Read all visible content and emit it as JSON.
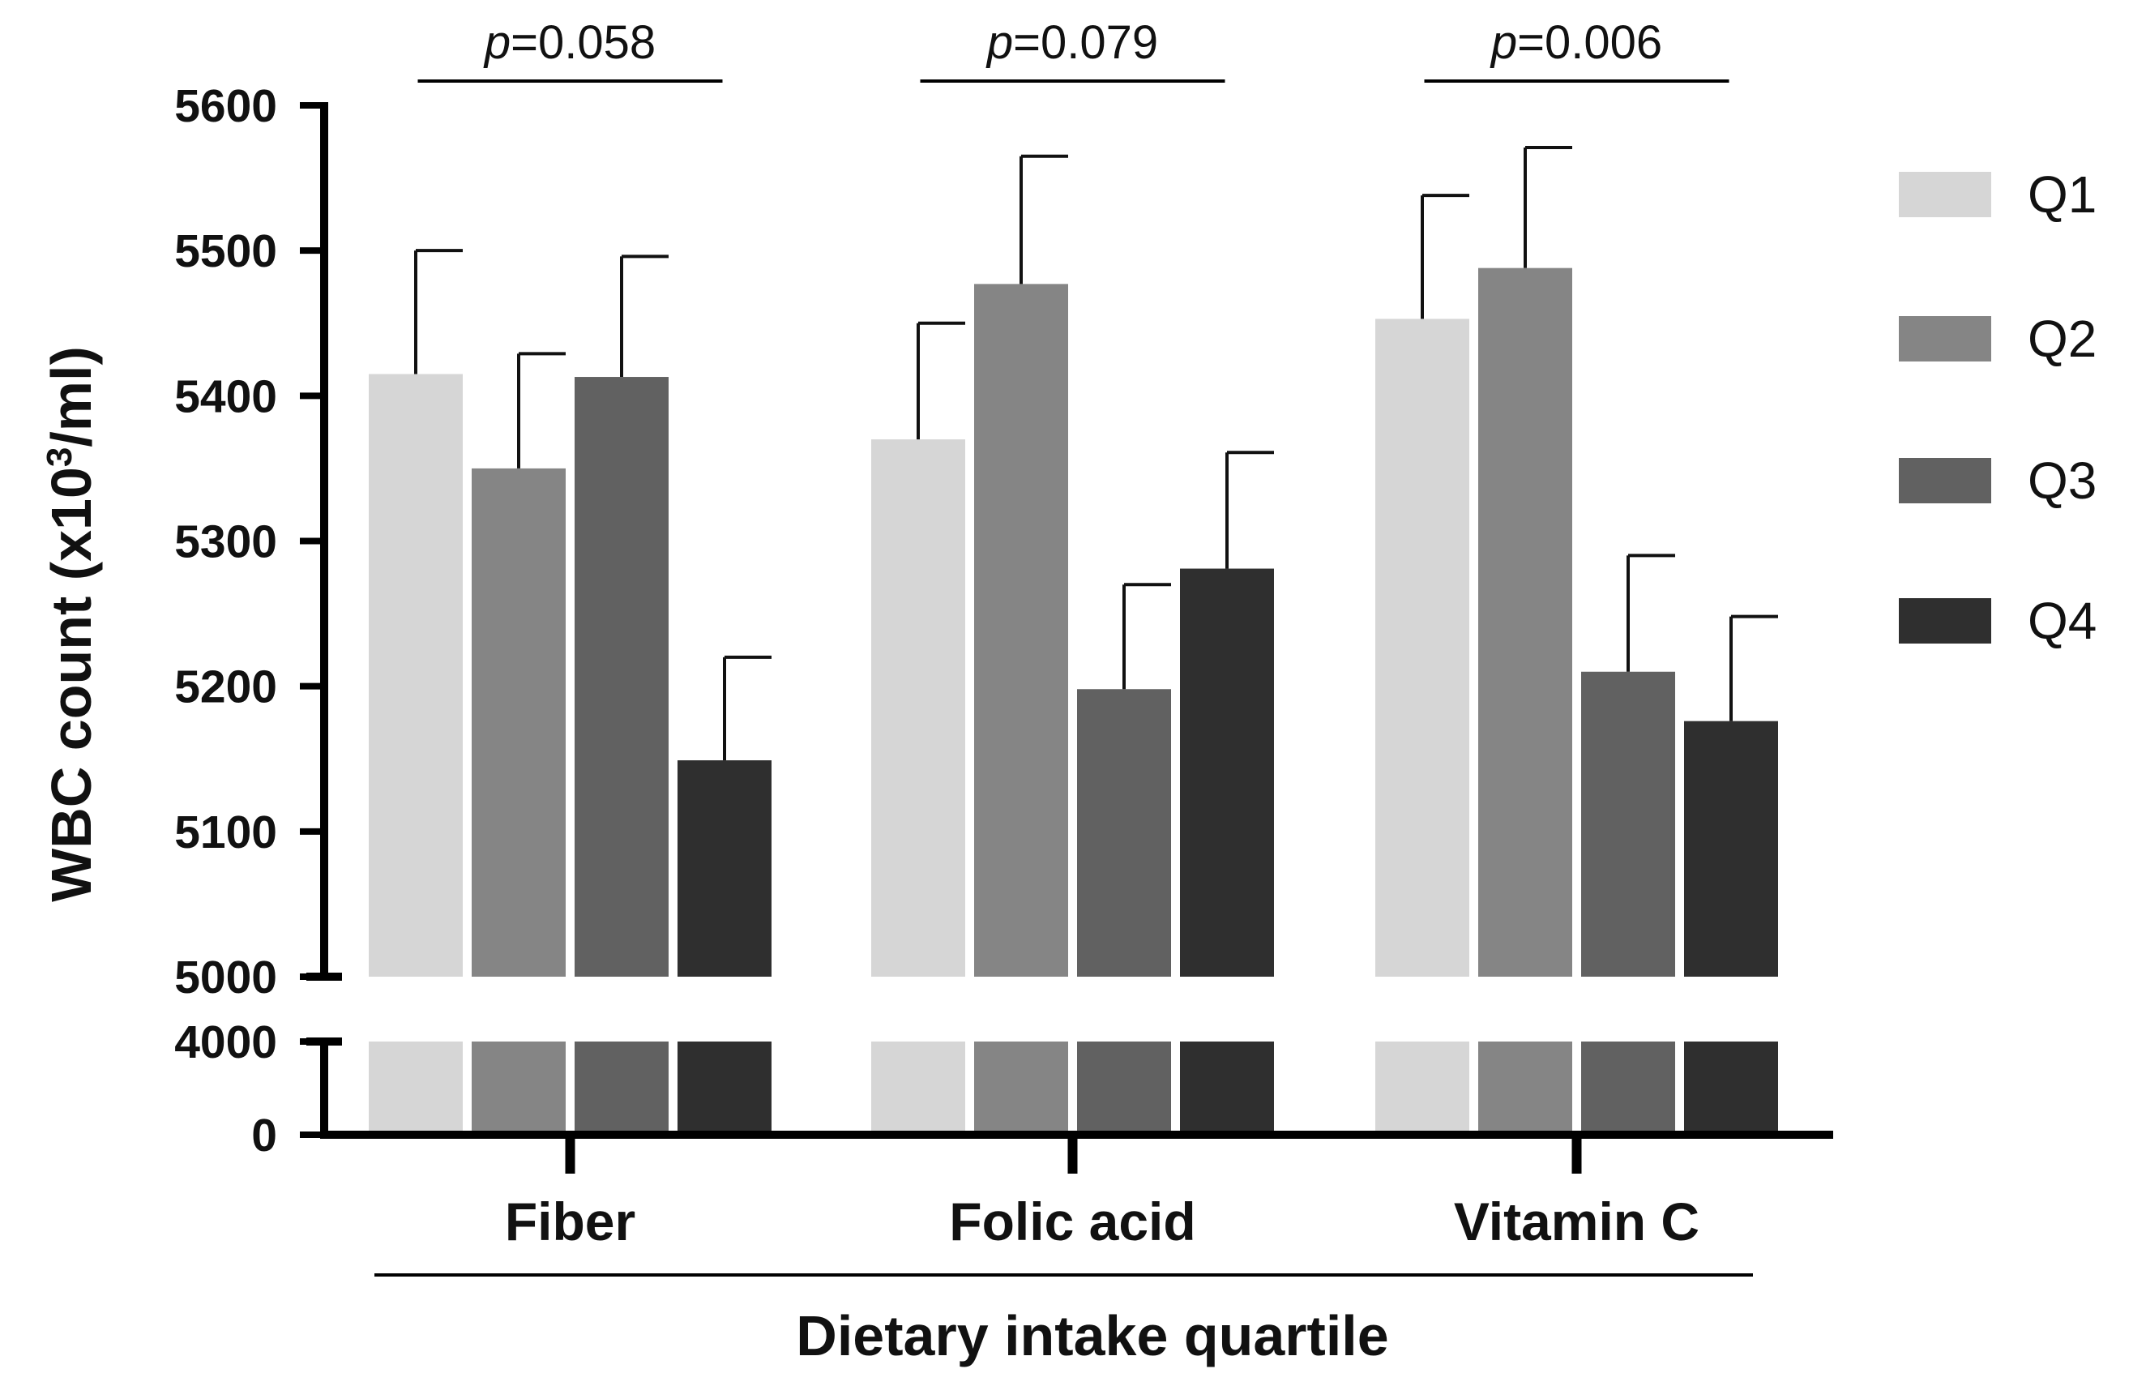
{
  "chart_data": {
    "type": "bar",
    "title": "",
    "xlabel": "Dietary intake quartile",
    "ylabel_main": "WBC count (x10",
    "ylabel_sup": "3",
    "ylabel_tail": "/ml)",
    "categories": [
      "Fiber",
      "Folic acid",
      "Vitamin C"
    ],
    "series": [
      {
        "name": "Q1",
        "color": "#d6d6d6",
        "values": [
          5415,
          5370,
          5453
        ],
        "errors": [
          85,
          80,
          85
        ]
      },
      {
        "name": "Q2",
        "color": "#858585",
        "values": [
          5350,
          5477,
          5488
        ],
        "errors": [
          79,
          88,
          83
        ]
      },
      {
        "name": "Q3",
        "color": "#616161",
        "values": [
          5413,
          5198,
          5210
        ],
        "errors": [
          83,
          72,
          80
        ]
      },
      {
        "name": "Q4",
        "color": "#2f2f2f",
        "values": [
          5149,
          5281,
          5176
        ],
        "errors": [
          71,
          80,
          72
        ]
      }
    ],
    "y_axis_upper": {
      "range": [
        5000,
        5600
      ],
      "ticks": [
        "5000",
        "5100",
        "5200",
        "5300",
        "5400",
        "5500",
        "5600"
      ]
    },
    "y_axis_lower": {
      "range": [
        0,
        4000
      ],
      "ticks": [
        "0",
        "4000"
      ]
    },
    "axis_break": true,
    "annotations": [
      {
        "category": "Fiber",
        "p_label": "p",
        "p_value": "=0.058"
      },
      {
        "category": "Folic acid",
        "p_label": "p",
        "p_value": "=0.079"
      },
      {
        "category": "Vitamin C",
        "p_label": "p",
        "p_value": "=0.006"
      }
    ],
    "legend_position": "right"
  }
}
